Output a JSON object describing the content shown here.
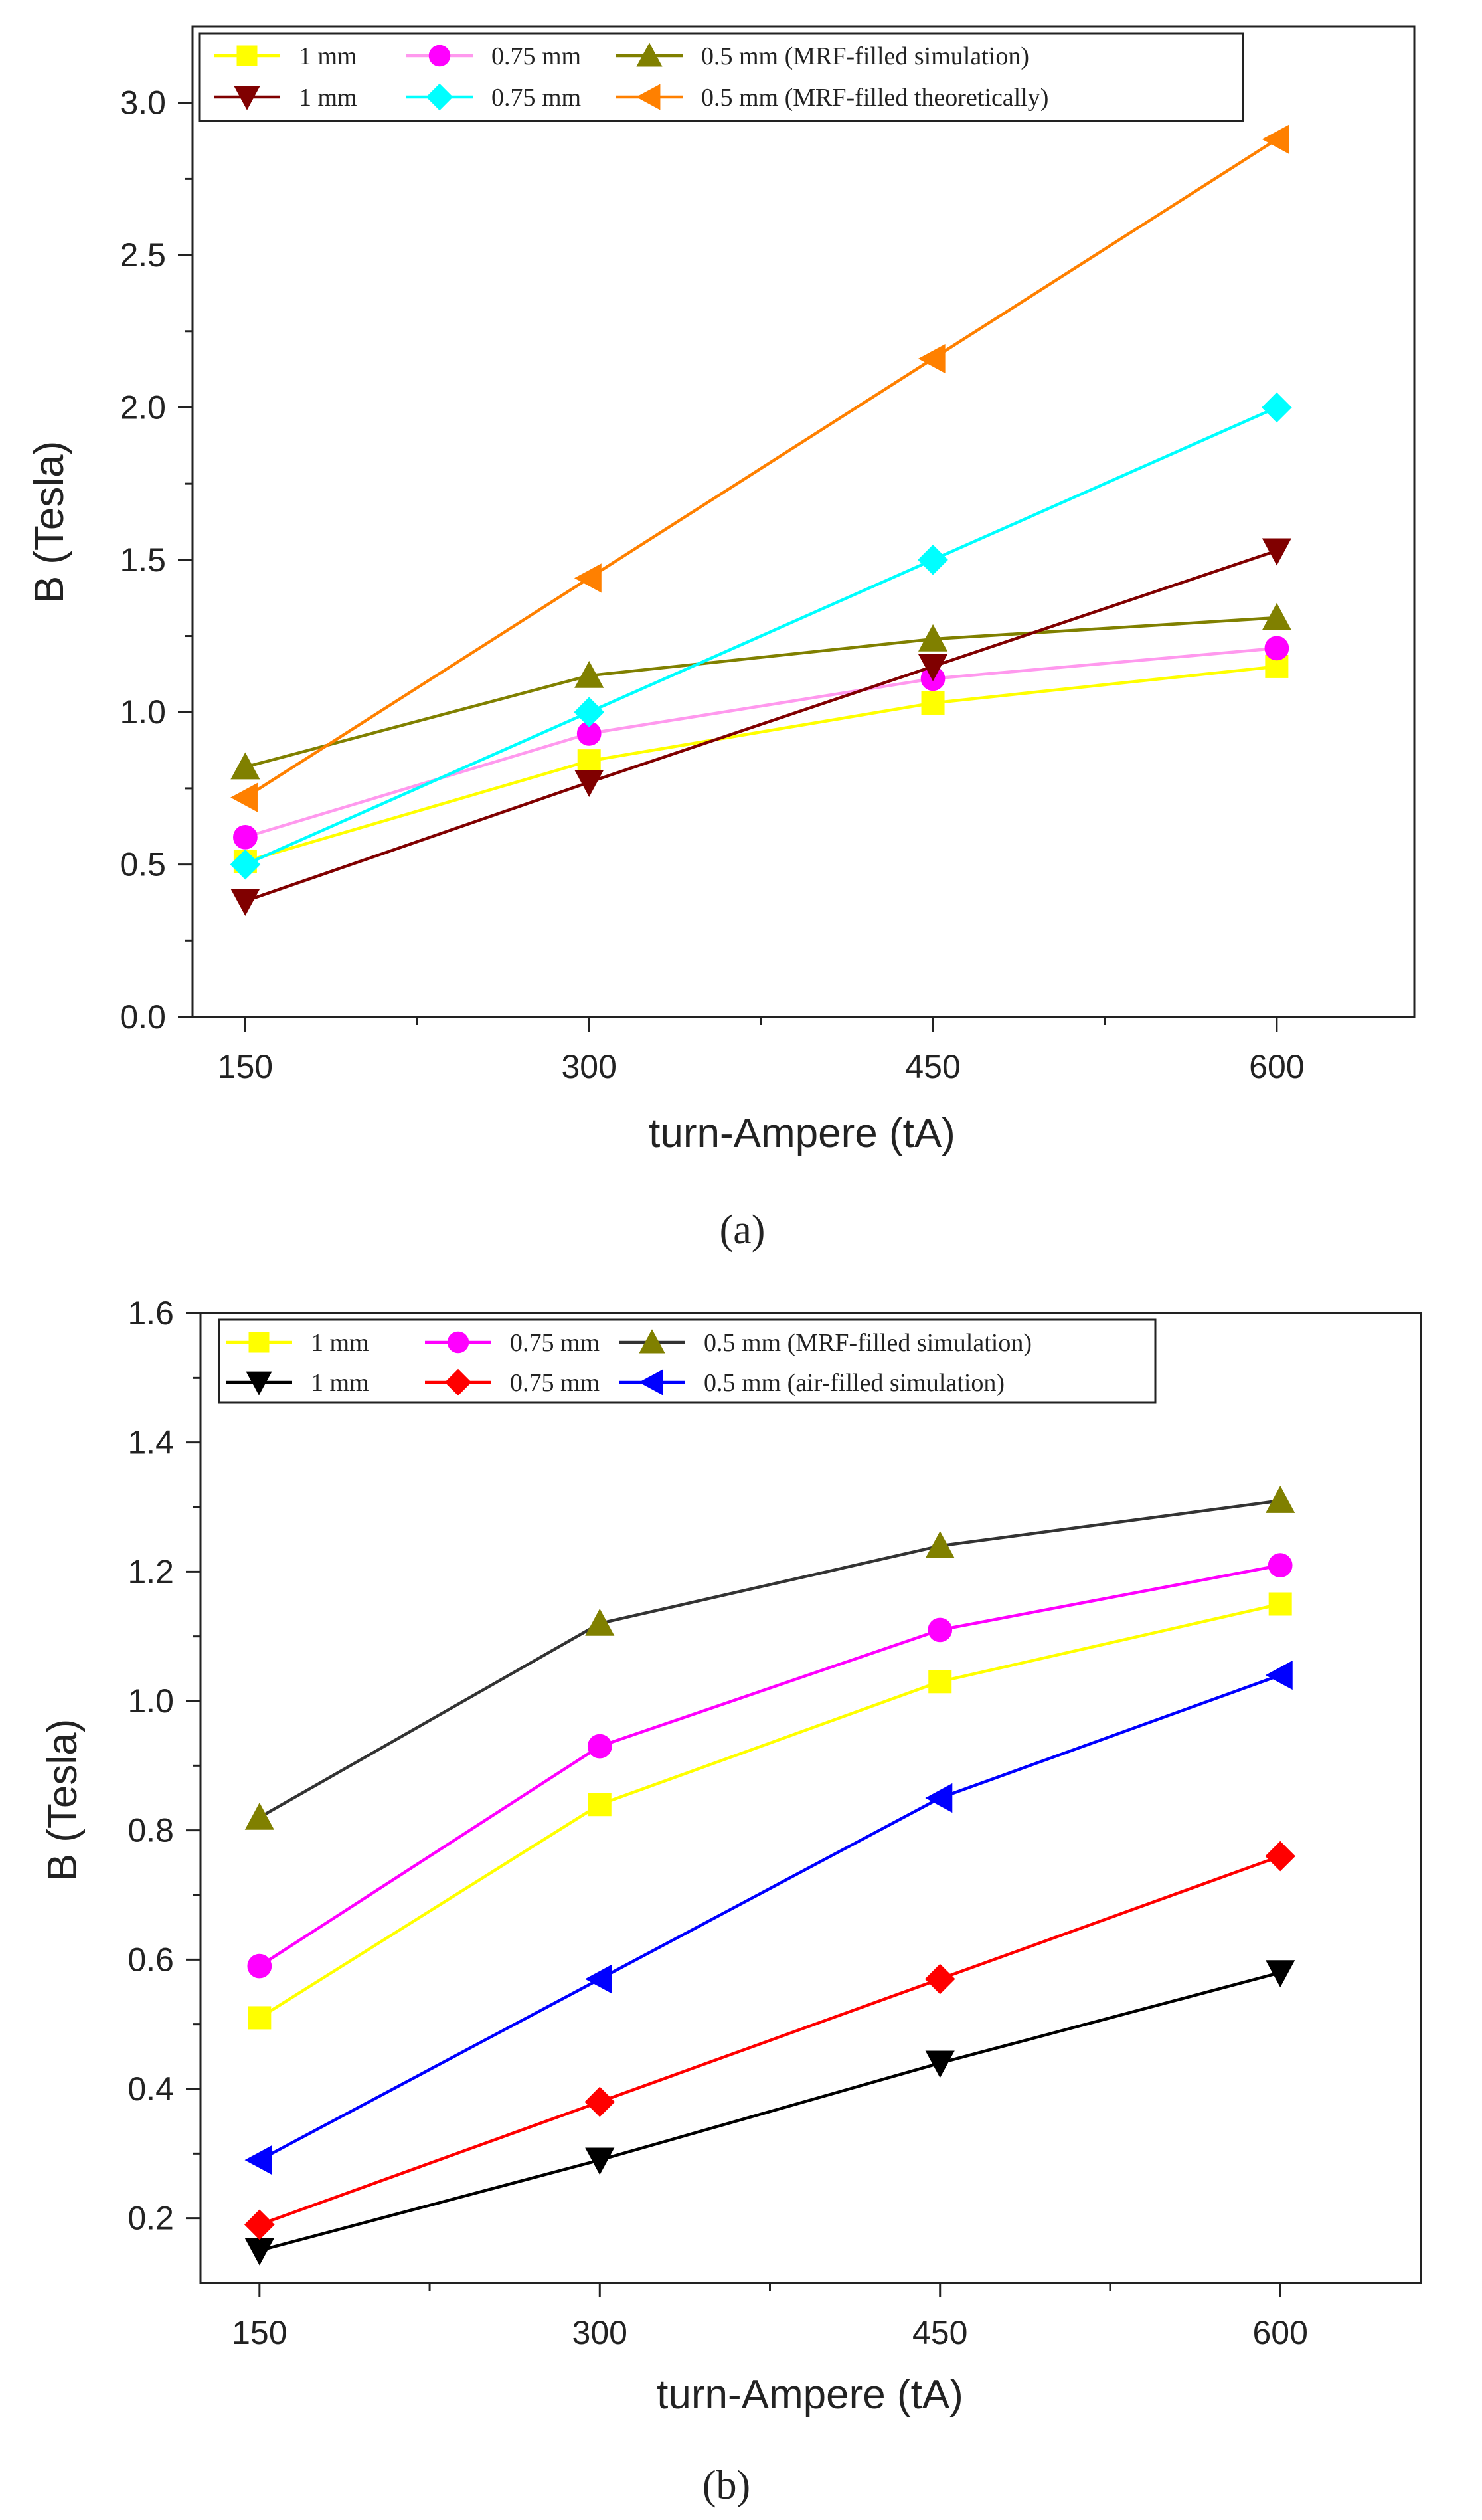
{
  "figure": {
    "panels": [
      {
        "caption": "(a)",
        "legend": {
          "rows": [
            [
              "0",
              "1",
              "2"
            ],
            [
              "3",
              "4",
              "5"
            ]
          ]
        }
      },
      {
        "caption": "(b)",
        "legend": {
          "rows": [
            [
              "0",
              "1",
              "2"
            ],
            [
              "3",
              "4",
              "5"
            ]
          ]
        }
      }
    ]
  },
  "chart_data": [
    {
      "type": "line",
      "title": "",
      "caption": "(a)",
      "xlabel": "turn-Ampere (tA)",
      "ylabel": "B (Tesla)",
      "x": [
        150,
        300,
        450,
        600
      ],
      "xticks": [
        "150",
        "300",
        "450",
        "600"
      ],
      "xlim": [
        127,
        660
      ],
      "ylim": [
        0,
        3.25
      ],
      "yticks": [
        "0.0",
        "0.5",
        "1.0",
        "1.5",
        "2.0",
        "2.5",
        "3.0"
      ],
      "grid": false,
      "legend_position": "top-left",
      "series": [
        {
          "name": "1 mm",
          "legend_label": "1 mm",
          "color": "#FFFF00",
          "marker": "square",
          "values": [
            0.51,
            0.84,
            1.03,
            1.15
          ]
        },
        {
          "name": "0.75 mm",
          "legend_label": "0.75 mm",
          "color": "#FF00FF",
          "line_color": "#FF99EE",
          "marker": "circle",
          "values": [
            0.59,
            0.93,
            1.11,
            1.21
          ]
        },
        {
          "name": "0.5 mm",
          "legend_label": "0.5 mm  (MRF-filled simulation)",
          "color": "#808000",
          "marker": "triangle-up",
          "values": [
            0.82,
            1.12,
            1.24,
            1.31
          ]
        },
        {
          "name": "1 mm",
          "legend_label": "1 mm",
          "color": "#800000",
          "marker": "triangle-down",
          "values": [
            0.38,
            0.77,
            1.15,
            1.53
          ]
        },
        {
          "name": "0.75 mm",
          "legend_label": "0.75 mm",
          "color": "#00FFFF",
          "marker": "diamond",
          "values": [
            0.5,
            1.0,
            1.5,
            2.0
          ]
        },
        {
          "name": "0.5 mm",
          "legend_label": "0.5 mm  (MRF-filled theoretically)",
          "color": "#FF8000",
          "marker": "triangle-left",
          "values": [
            0.72,
            1.44,
            2.16,
            2.88
          ]
        }
      ]
    },
    {
      "type": "line",
      "title": "",
      "caption": "(b)",
      "xlabel": "turn-Ampere (tA)",
      "ylabel": "B (Tesla)",
      "x": [
        150,
        300,
        450,
        600
      ],
      "xticks": [
        "150",
        "300",
        "450",
        "600"
      ],
      "xlim": [
        124,
        662
      ],
      "ylim": [
        0.1,
        1.6
      ],
      "yticks": [
        "0.2",
        "0.4",
        "0.6",
        "0.8",
        "1.0",
        "1.2",
        "1.4",
        "1.6"
      ],
      "grid": false,
      "legend_position": "top-left",
      "series": [
        {
          "name": "1 mm",
          "legend_label": "1 mm",
          "color": "#FFFF00",
          "marker": "square",
          "values": [
            0.51,
            0.84,
            1.03,
            1.15
          ]
        },
        {
          "name": "0.75 mm",
          "legend_label": "0.75 mm",
          "color": "#FF00FF",
          "marker": "circle",
          "values": [
            0.59,
            0.93,
            1.11,
            1.21
          ]
        },
        {
          "name": "0.5 mm",
          "legend_label": "0.5 mm  (MRF-filled simulation)",
          "color": "#808000",
          "line_color": "#333333",
          "marker": "triangle-up",
          "values": [
            0.82,
            1.12,
            1.24,
            1.31
          ]
        },
        {
          "name": "1 mm",
          "legend_label": "1 mm",
          "color": "#000000",
          "marker": "triangle-down",
          "values": [
            0.15,
            0.29,
            0.44,
            0.58
          ]
        },
        {
          "name": "0.75 mm",
          "legend_label": "0.75 mm",
          "color": "#FF0000",
          "marker": "diamond",
          "values": [
            0.19,
            0.38,
            0.57,
            0.76
          ]
        },
        {
          "name": "0.5 mm",
          "legend_label": "0.5 mm  (air-filled simulation)",
          "color": "#0000FF",
          "marker": "triangle-left",
          "values": [
            0.29,
            0.57,
            0.85,
            1.04
          ]
        }
      ]
    }
  ]
}
